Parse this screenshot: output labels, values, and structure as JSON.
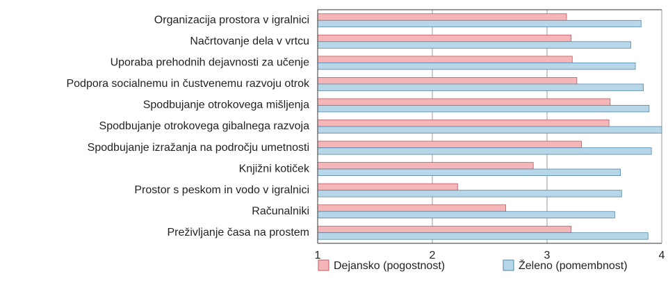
{
  "chart_data": {
    "type": "bar",
    "orientation": "horizontal",
    "categories": [
      "Organizacija prostora v igralnici",
      "Načrtovanje dela v vrtcu",
      "Uporaba prehodnih dejavnosti za učenje",
      "Podpora socialnemu in čustvenemu razvoju otrok",
      "Spodbujanje otrokovega mišljenja",
      "Spodbujanje otrokovega gibalnega razvoja",
      "Spodbujanje izražanja na področju umetnosti",
      "Knjižni kotiček",
      "Prostor s peskom in vodo v igralnici",
      "Računalniki",
      "Preživljanje časa na prostem"
    ],
    "series": [
      {
        "name": "Dejansko (pogostnost)",
        "color": "#f4b6b8",
        "values": [
          3.17,
          3.21,
          3.22,
          3.26,
          3.55,
          3.54,
          3.3,
          2.88,
          2.22,
          2.64,
          3.21
        ]
      },
      {
        "name": "Želeno (pomembnost)",
        "color": "#b7d7e8",
        "values": [
          3.82,
          3.73,
          3.77,
          3.84,
          3.89,
          4.0,
          3.91,
          3.64,
          3.65,
          3.59,
          3.88
        ]
      }
    ],
    "xlim": [
      1,
      4
    ],
    "xticks": [
      1,
      2,
      3,
      4
    ],
    "grid": true,
    "legend": "bottom"
  }
}
